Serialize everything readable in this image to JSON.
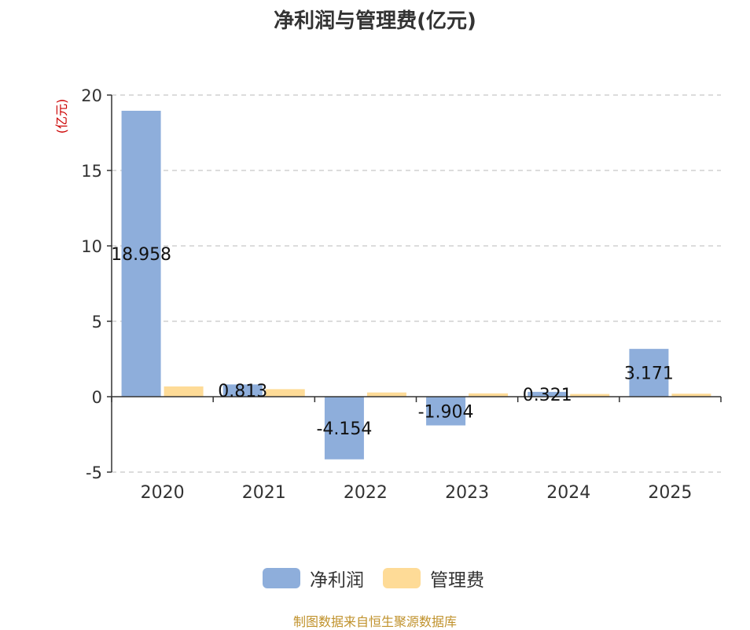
{
  "chart_data": {
    "type": "bar",
    "title": "净利润与管理费(亿元)",
    "ylabel": "(亿元)",
    "categories": [
      "2020",
      "2021",
      "2022",
      "2023",
      "2024",
      "2025"
    ],
    "series": [
      {
        "name": "净利润",
        "values": [
          18.958,
          0.813,
          -4.154,
          -1.904,
          0.321,
          3.171
        ],
        "labels": [
          "18.958",
          "0.813",
          "-4.154",
          "-1.904",
          "0.321",
          "3.171"
        ]
      },
      {
        "name": "管理费",
        "values": [
          0.68,
          0.5,
          0.28,
          0.22,
          0.18,
          0.2
        ]
      }
    ],
    "ylim": [
      -5,
      20
    ],
    "yticks": [
      -5,
      0,
      5,
      10,
      15,
      20
    ],
    "grid": true,
    "legend": "bottom-center"
  },
  "colors": {
    "net_profit": "#8eaedb",
    "mgmt_fee": "#fedb97",
    "ylabel": "#cc0000",
    "source": "#c0922c",
    "grid": "#c8c8c8",
    "axis": "#333333"
  },
  "source": "制图数据来自恒生聚源数据库"
}
